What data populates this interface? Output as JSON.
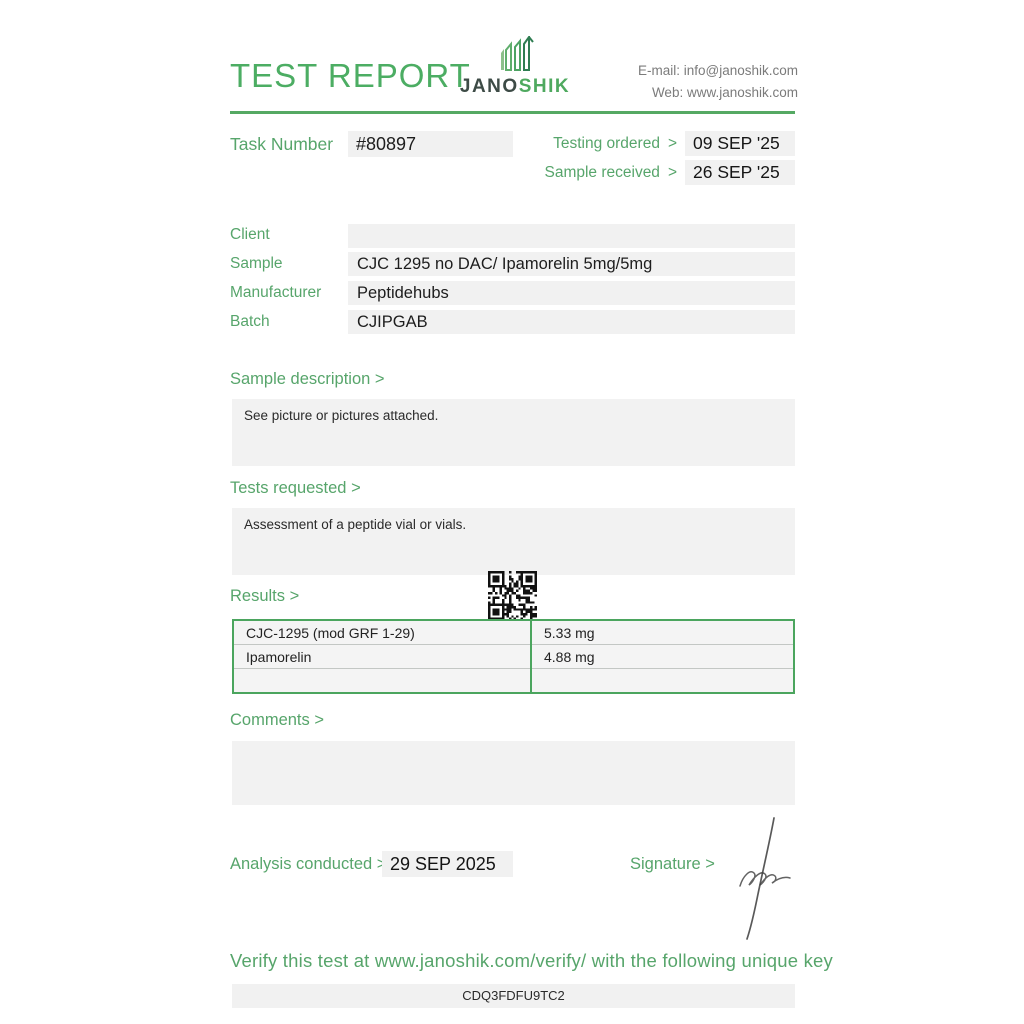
{
  "header": {
    "title": "TEST REPORT",
    "logo": {
      "text_dark": "JANO",
      "text_green": "SHIK"
    },
    "contact": {
      "email_line": "E-mail: info@janoshik.com",
      "web_line": "Web: www.janoshik.com"
    }
  },
  "task": {
    "label": "Task Number",
    "number": "#80897",
    "testing_ordered_label": "Testing ordered",
    "testing_ordered_arrow": ">",
    "testing_ordered_value": "09 SEP '25",
    "sample_received_label": "Sample received",
    "sample_received_arrow": ">",
    "sample_received_value": "26 SEP '25"
  },
  "fields": [
    {
      "label": "Client",
      "value": ""
    },
    {
      "label": "Sample",
      "value": "CJC 1295 no DAC/ Ipamorelin 5mg/5mg"
    },
    {
      "label": "Manufacturer",
      "value": "Peptidehubs"
    },
    {
      "label": "Batch",
      "value": "CJIPGAB"
    }
  ],
  "sections": {
    "sample_description": {
      "label": "Sample description >",
      "content": "See picture or pictures attached."
    },
    "tests_requested": {
      "label": "Tests requested >",
      "content": "Assessment of a peptide vial or vials."
    },
    "results": {
      "label": "Results >"
    },
    "comments": {
      "label": "Comments >",
      "content": ""
    }
  },
  "results_table": {
    "rows": [
      {
        "analyte": "CJC-1295 (mod GRF 1-29)",
        "result": "5.33 mg"
      },
      {
        "analyte": "Ipamorelin",
        "result": "4.88 mg"
      },
      {
        "analyte": "",
        "result": ""
      }
    ]
  },
  "footer": {
    "analysis_label": "Analysis conducted >",
    "analysis_date": "29 SEP 2025",
    "signature_label": "Signature >",
    "verify_text": "Verify this test at www.janoshik.com/verify/ with the following unique key",
    "unique_key": "CDQ3FDFU9TC2"
  },
  "icons": {
    "qr": "qr-code",
    "logo_chart": "bar-chart-logo-icon"
  },
  "colors": {
    "accent_green": "#57a56b",
    "title_green": "#4cad63",
    "rule_green": "#55a963",
    "table_border_green": "#4ba55e",
    "box_gray": "#f1f1f1",
    "text_dark": "#1e1e1e",
    "contact_gray": "#7b7b7b"
  }
}
